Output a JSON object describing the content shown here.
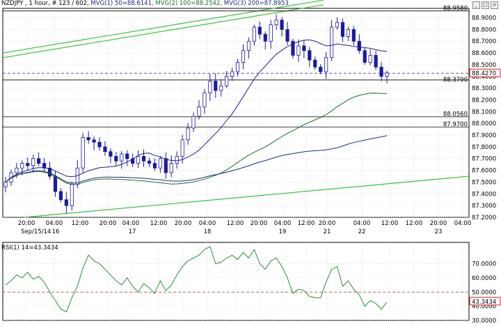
{
  "header": {
    "symbol_line": "NZDJPY , 1 hour, # 123 / 602,",
    "ma1": "MVG(1) 50=88.6141,",
    "ma2": "MVG(2) 100=88.2542,",
    "ma3": "MVG(3) 200=87.8953"
  },
  "rsi_header": "RSI(1) 14=43.3434",
  "colors": {
    "candle": "#1a1aa0",
    "ma50": "#1c1c8a",
    "ma100": "#1f6b2a",
    "ma200": "#1c2f7a",
    "trendline": "#3cbf3c",
    "grid": "#c8c8c8",
    "hline": "#000000",
    "dashed_price": "#3a3aa0",
    "rsi_line": "#2e8b3a",
    "rsi_level": "#b03030",
    "price_box": "#d02020"
  },
  "chart_data": [
    {
      "type": "candlestick",
      "title": "NZDJPY , 1 hour",
      "ylim": [
        87.2,
        88.98
      ],
      "y_ticks": [
        "88.9000",
        "88.8000",
        "88.7000",
        "88.6000",
        "88.5000",
        "88.4000",
        "88.3000",
        "88.2000",
        "88.1000",
        "88.0000",
        "87.9000",
        "87.8000",
        "87.7000",
        "87.6000",
        "87.5000",
        "87.4000",
        "87.3000",
        "87.2000"
      ],
      "x_tick_labels": [
        "20:00",
        "04:00",
        "12:00",
        "20:00",
        "04:00",
        "12:00",
        "20:00",
        "04:00",
        "12:00",
        "20:00",
        "04:00",
        "12:00",
        "20:00",
        "04:00",
        "12:00",
        "12:00",
        "20:00",
        "04:00",
        "12:00",
        "20:00",
        "04:00",
        "12:00"
      ],
      "date_labels": [
        "Sep/15/14",
        "16",
        "17",
        "18",
        "19",
        "21",
        "22",
        "23"
      ],
      "candles_count": 123,
      "close_path": [
        87.5,
        87.58,
        87.62,
        87.66,
        87.64,
        87.7,
        87.66,
        87.62,
        87.55,
        87.42,
        87.35,
        87.3,
        87.48,
        87.62,
        87.88,
        87.86,
        87.84,
        87.8,
        87.76,
        87.72,
        87.68,
        87.74,
        87.7,
        87.66,
        87.72,
        87.68,
        87.66,
        87.62,
        87.7,
        87.58,
        87.66,
        87.72,
        87.86,
        87.96,
        88.06,
        88.14,
        88.26,
        88.36,
        88.28,
        88.32,
        88.4,
        88.44,
        88.52,
        88.62,
        88.7,
        88.82,
        88.76,
        88.7,
        88.84,
        88.88,
        88.8,
        88.7,
        88.58,
        88.66,
        88.62,
        88.54,
        88.48,
        88.44,
        88.56,
        88.82,
        88.86,
        88.74,
        88.8,
        88.7,
        88.62,
        88.52,
        88.58,
        88.48,
        88.4,
        88.43
      ],
      "ohlc_sample": "derived",
      "horizontal_lines": {
        "top_line": "88.9580",
        "price_line": "88.4270",
        "support_line": "88.3700",
        "line_b": "88.0560",
        "line_c": "87.9700"
      },
      "moving_averages": [
        {
          "name": "MVG(1) 50",
          "last": 88.6141
        },
        {
          "name": "MVG(2) 100",
          "last": 88.2542
        },
        {
          "name": "MVG(3) 200",
          "last": 87.8953
        }
      ]
    },
    {
      "type": "line",
      "title": "RSI(1) 14=43.3434",
      "ylim": [
        30,
        85
      ],
      "y_ticks": [
        "70.0000",
        "60.0000",
        "50.0000",
        "40.0000",
        "30.0000"
      ],
      "levels": [
        50
      ],
      "last_value": "43.3434",
      "values": [
        55,
        58,
        62,
        60,
        64,
        59,
        61,
        57,
        50,
        44,
        38,
        36,
        46,
        54,
        67,
        76,
        72,
        70,
        66,
        62,
        58,
        55,
        60,
        54,
        50,
        56,
        53,
        49,
        58,
        51,
        55,
        62,
        68,
        72,
        74,
        76,
        80,
        82,
        70,
        71,
        74,
        76,
        73,
        78,
        74,
        80,
        70,
        66,
        72,
        74,
        68,
        60,
        49,
        52,
        51,
        47,
        46,
        46,
        57,
        66,
        68,
        54,
        58,
        52,
        48,
        40,
        44,
        42,
        38,
        43
      ]
    }
  ]
}
